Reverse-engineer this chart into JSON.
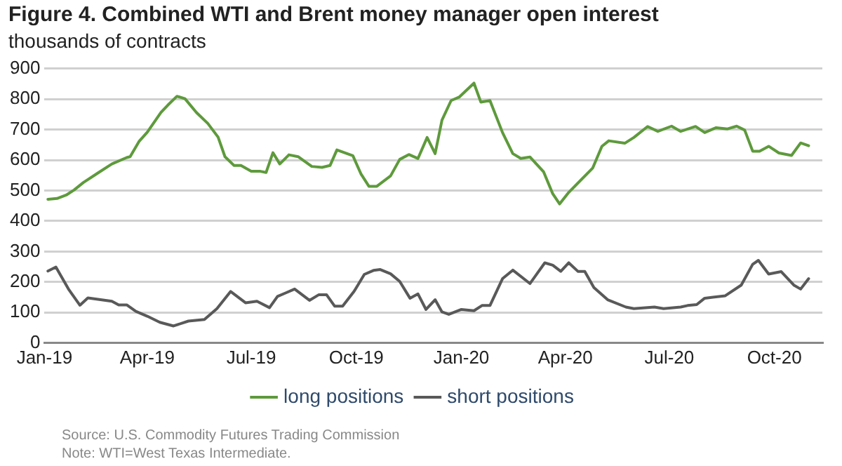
{
  "chart_data": {
    "type": "line",
    "title": "Figure 4. Combined WTI and Brent money manager open interest",
    "ylabel": "thousands of contracts",
    "annotations": [
      "Source: U.S. Commodity Futures Trading Commission",
      "Note: WTI=West Texas Intermediate."
    ],
    "xlim": [
      "2019-01-01",
      "2020-11-12"
    ],
    "xticks": [
      {
        "value": "2019-01-01",
        "label": "Jan-19"
      },
      {
        "value": "2019-04-01",
        "label": "Apr-19"
      },
      {
        "value": "2019-07-01",
        "label": "Jul-19"
      },
      {
        "value": "2019-10-01",
        "label": "Oct-19"
      },
      {
        "value": "2020-01-01",
        "label": "Jan-20"
      },
      {
        "value": "2020-04-01",
        "label": "Apr-20"
      },
      {
        "value": "2020-07-01",
        "label": "Jul-20"
      },
      {
        "value": "2020-10-01",
        "label": "Oct-20"
      }
    ],
    "ylim": [
      0,
      900
    ],
    "yticks": [
      0,
      100,
      200,
      300,
      400,
      500,
      600,
      700,
      800,
      900
    ],
    "grid": "y",
    "legend": "bottom",
    "marker": "none",
    "line_style": "solid",
    "series": [
      {
        "name": "long positions",
        "color": "#5e9a3c",
        "x": [
          "2019-01-04",
          "2019-01-12",
          "2019-01-20",
          "2019-01-27",
          "2019-02-04",
          "2019-02-17",
          "2019-03-01",
          "2019-03-14",
          "2019-03-17",
          "2019-03-25",
          "2019-04-01",
          "2019-04-13",
          "2019-04-19",
          "2019-04-27",
          "2019-05-04",
          "2019-05-14",
          "2019-05-24",
          "2019-06-02",
          "2019-06-08",
          "2019-06-16",
          "2019-06-22",
          "2019-07-01",
          "2019-07-09",
          "2019-07-14",
          "2019-07-20",
          "2019-07-26",
          "2019-08-03",
          "2019-08-11",
          "2019-08-23",
          "2019-09-01",
          "2019-09-08",
          "2019-09-14",
          "2019-09-28",
          "2019-10-05",
          "2019-10-12",
          "2019-10-19",
          "2019-10-31",
          "2019-11-08",
          "2019-11-16",
          "2019-11-24",
          "2019-12-02",
          "2019-12-09",
          "2019-12-15",
          "2019-12-23",
          "2019-12-30",
          "2020-01-12",
          "2020-01-18",
          "2020-01-26",
          "2020-02-06",
          "2020-02-15",
          "2020-02-22",
          "2020-03-01",
          "2020-03-13",
          "2020-03-21",
          "2020-03-27",
          "2020-04-04",
          "2020-04-25",
          "2020-05-03",
          "2020-05-09",
          "2020-05-23",
          "2020-05-31",
          "2020-06-12",
          "2020-06-21",
          "2020-07-03",
          "2020-07-11",
          "2020-07-24",
          "2020-08-01",
          "2020-08-11",
          "2020-08-21",
          "2020-08-29",
          "2020-09-05",
          "2020-09-12",
          "2020-09-18",
          "2020-09-26",
          "2020-10-05",
          "2020-10-16",
          "2020-10-24",
          "2020-10-31"
        ],
        "values": [
          471,
          474,
          485,
          502,
          526,
          558,
          587,
          608,
          611,
          662,
          691,
          756,
          780,
          809,
          801,
          756,
          720,
          675,
          611,
          582,
          582,
          563,
          563,
          559,
          624,
          587,
          617,
          611,
          579,
          576,
          582,
          633,
          614,
          555,
          514,
          514,
          548,
          602,
          618,
          605,
          674,
          621,
          731,
          795,
          806,
          852,
          790,
          795,
          690,
          621,
          605,
          610,
          561,
          489,
          456,
          494,
          574,
          645,
          663,
          655,
          674,
          710,
          694,
          711,
          694,
          710,
          690,
          706,
          702,
          711,
          698,
          629,
          629,
          645,
          623,
          615,
          656,
          647
        ]
      },
      {
        "name": "short positions",
        "color": "#595959",
        "x": [
          "2019-01-04",
          "2019-01-11",
          "2019-01-22",
          "2019-02-01",
          "2019-02-08",
          "2019-03-01",
          "2019-03-07",
          "2019-03-14",
          "2019-03-22",
          "2019-04-01",
          "2019-04-12",
          "2019-04-24",
          "2019-05-07",
          "2019-05-21",
          "2019-06-01",
          "2019-06-13",
          "2019-06-26",
          "2019-07-06",
          "2019-07-17",
          "2019-07-24",
          "2019-07-31",
          "2019-08-08",
          "2019-08-21",
          "2019-08-29",
          "2019-09-05",
          "2019-09-12",
          "2019-09-19",
          "2019-09-29",
          "2019-10-08",
          "2019-10-16",
          "2019-10-22",
          "2019-10-31",
          "2019-11-08",
          "2019-11-17",
          "2019-11-24",
          "2019-12-01",
          "2019-12-09",
          "2019-12-15",
          "2019-12-21",
          "2020-01-01",
          "2020-01-12",
          "2020-01-19",
          "2020-01-26",
          "2020-02-06",
          "2020-02-15",
          "2020-03-01",
          "2020-03-14",
          "2020-03-21",
          "2020-03-28",
          "2020-04-04",
          "2020-04-12",
          "2020-04-18",
          "2020-04-26",
          "2020-05-08",
          "2020-05-24",
          "2020-05-31",
          "2020-06-18",
          "2020-06-26",
          "2020-07-11",
          "2020-07-17",
          "2020-07-25",
          "2020-08-01",
          "2020-08-19",
          "2020-09-02",
          "2020-09-12",
          "2020-09-17",
          "2020-09-26",
          "2020-10-07",
          "2020-10-18",
          "2020-10-24",
          "2020-10-31"
        ],
        "values": [
          236,
          249,
          177,
          124,
          148,
          137,
          125,
          125,
          104,
          88,
          68,
          56,
          72,
          77,
          113,
          169,
          132,
          137,
          116,
          153,
          164,
          177,
          140,
          158,
          158,
          121,
          121,
          169,
          225,
          238,
          241,
          227,
          202,
          147,
          161,
          110,
          142,
          102,
          94,
          110,
          106,
          123,
          123,
          211,
          239,
          195,
          263,
          255,
          235,
          263,
          235,
          235,
          182,
          142,
          118,
          113,
          118,
          113,
          118,
          123,
          126,
          147,
          155,
          190,
          258,
          271,
          226,
          234,
          190,
          177,
          211
        ]
      }
    ]
  }
}
